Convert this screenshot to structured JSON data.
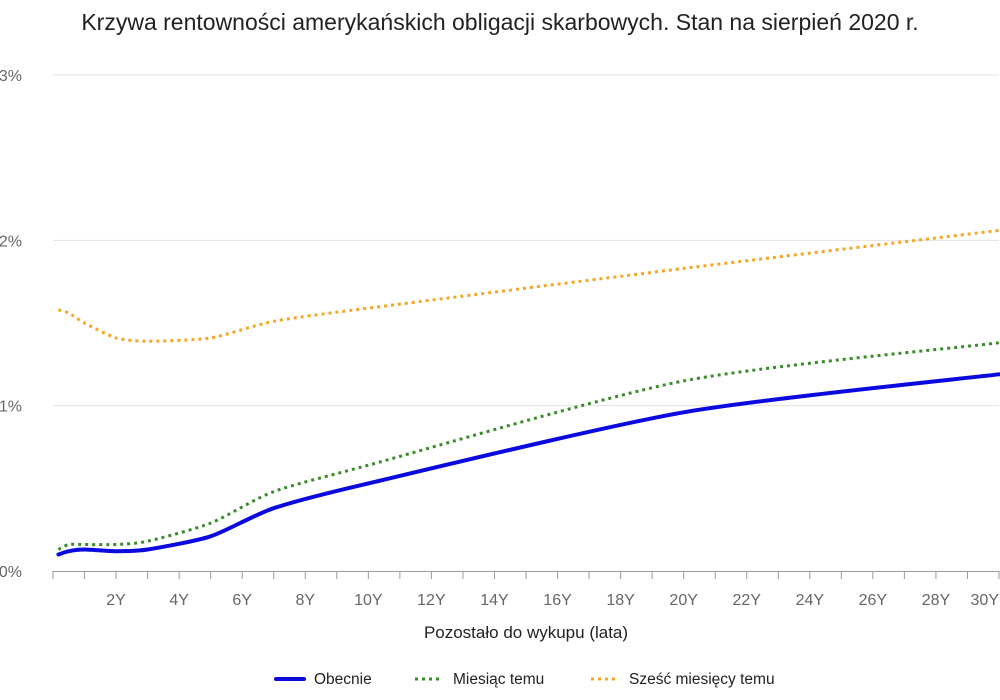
{
  "chart_data": {
    "type": "line",
    "title": "Krzywa rentowności amerykańskich obligacji skarbowych. Stan na sierpień 2020 r.",
    "xlabel": "Pozostało do wykupu (lata)",
    "ylabel": "",
    "xlim": [
      0,
      30
    ],
    "ylim": [
      0,
      3
    ],
    "x_ticks": [
      {
        "value": 2,
        "label": "2Y"
      },
      {
        "value": 4,
        "label": "4Y"
      },
      {
        "value": 6,
        "label": "6Y"
      },
      {
        "value": 8,
        "label": "8Y"
      },
      {
        "value": 10,
        "label": "10Y"
      },
      {
        "value": 12,
        "label": "12Y"
      },
      {
        "value": 14,
        "label": "14Y"
      },
      {
        "value": 16,
        "label": "16Y"
      },
      {
        "value": 18,
        "label": "18Y"
      },
      {
        "value": 20,
        "label": "20Y"
      },
      {
        "value": 22,
        "label": "22Y"
      },
      {
        "value": 24,
        "label": "24Y"
      },
      {
        "value": 26,
        "label": "26Y"
      },
      {
        "value": 28,
        "label": "28Y"
      },
      {
        "value": 30,
        "label": "30Y"
      }
    ],
    "y_ticks": [
      {
        "value": 0,
        "label": "0%"
      },
      {
        "value": 1,
        "label": "1%"
      },
      {
        "value": 2,
        "label": "2%"
      },
      {
        "value": 3,
        "label": "3%"
      }
    ],
    "grid": true,
    "legend_position": "bottom",
    "series": [
      {
        "name": "Obecnie",
        "color": "#0a0adf",
        "style": "solid",
        "points": [
          [
            0.17,
            0.1
          ],
          [
            0.5,
            0.12
          ],
          [
            1,
            0.13
          ],
          [
            2,
            0.12
          ],
          [
            3,
            0.13
          ],
          [
            5,
            0.21
          ],
          [
            7,
            0.38
          ],
          [
            10,
            0.53
          ],
          [
            20,
            0.96
          ],
          [
            30,
            1.19
          ]
        ]
      },
      {
        "name": "Miesiąc temu",
        "color": "#3a8c2a",
        "style": "dotted",
        "points": [
          [
            0.17,
            0.13
          ],
          [
            0.5,
            0.16
          ],
          [
            1,
            0.16
          ],
          [
            2,
            0.16
          ],
          [
            3,
            0.18
          ],
          [
            5,
            0.29
          ],
          [
            7,
            0.48
          ],
          [
            10,
            0.64
          ],
          [
            20,
            1.15
          ],
          [
            30,
            1.38
          ]
        ]
      },
      {
        "name": "Sześć miesięcy temu",
        "color": "#f5a623",
        "style": "dotted",
        "points": [
          [
            0.17,
            1.58
          ],
          [
            0.5,
            1.56
          ],
          [
            1,
            1.5
          ],
          [
            2,
            1.41
          ],
          [
            3,
            1.39
          ],
          [
            5,
            1.41
          ],
          [
            7,
            1.51
          ],
          [
            10,
            1.59
          ],
          [
            20,
            1.83
          ],
          [
            30,
            2.06
          ]
        ]
      }
    ]
  }
}
